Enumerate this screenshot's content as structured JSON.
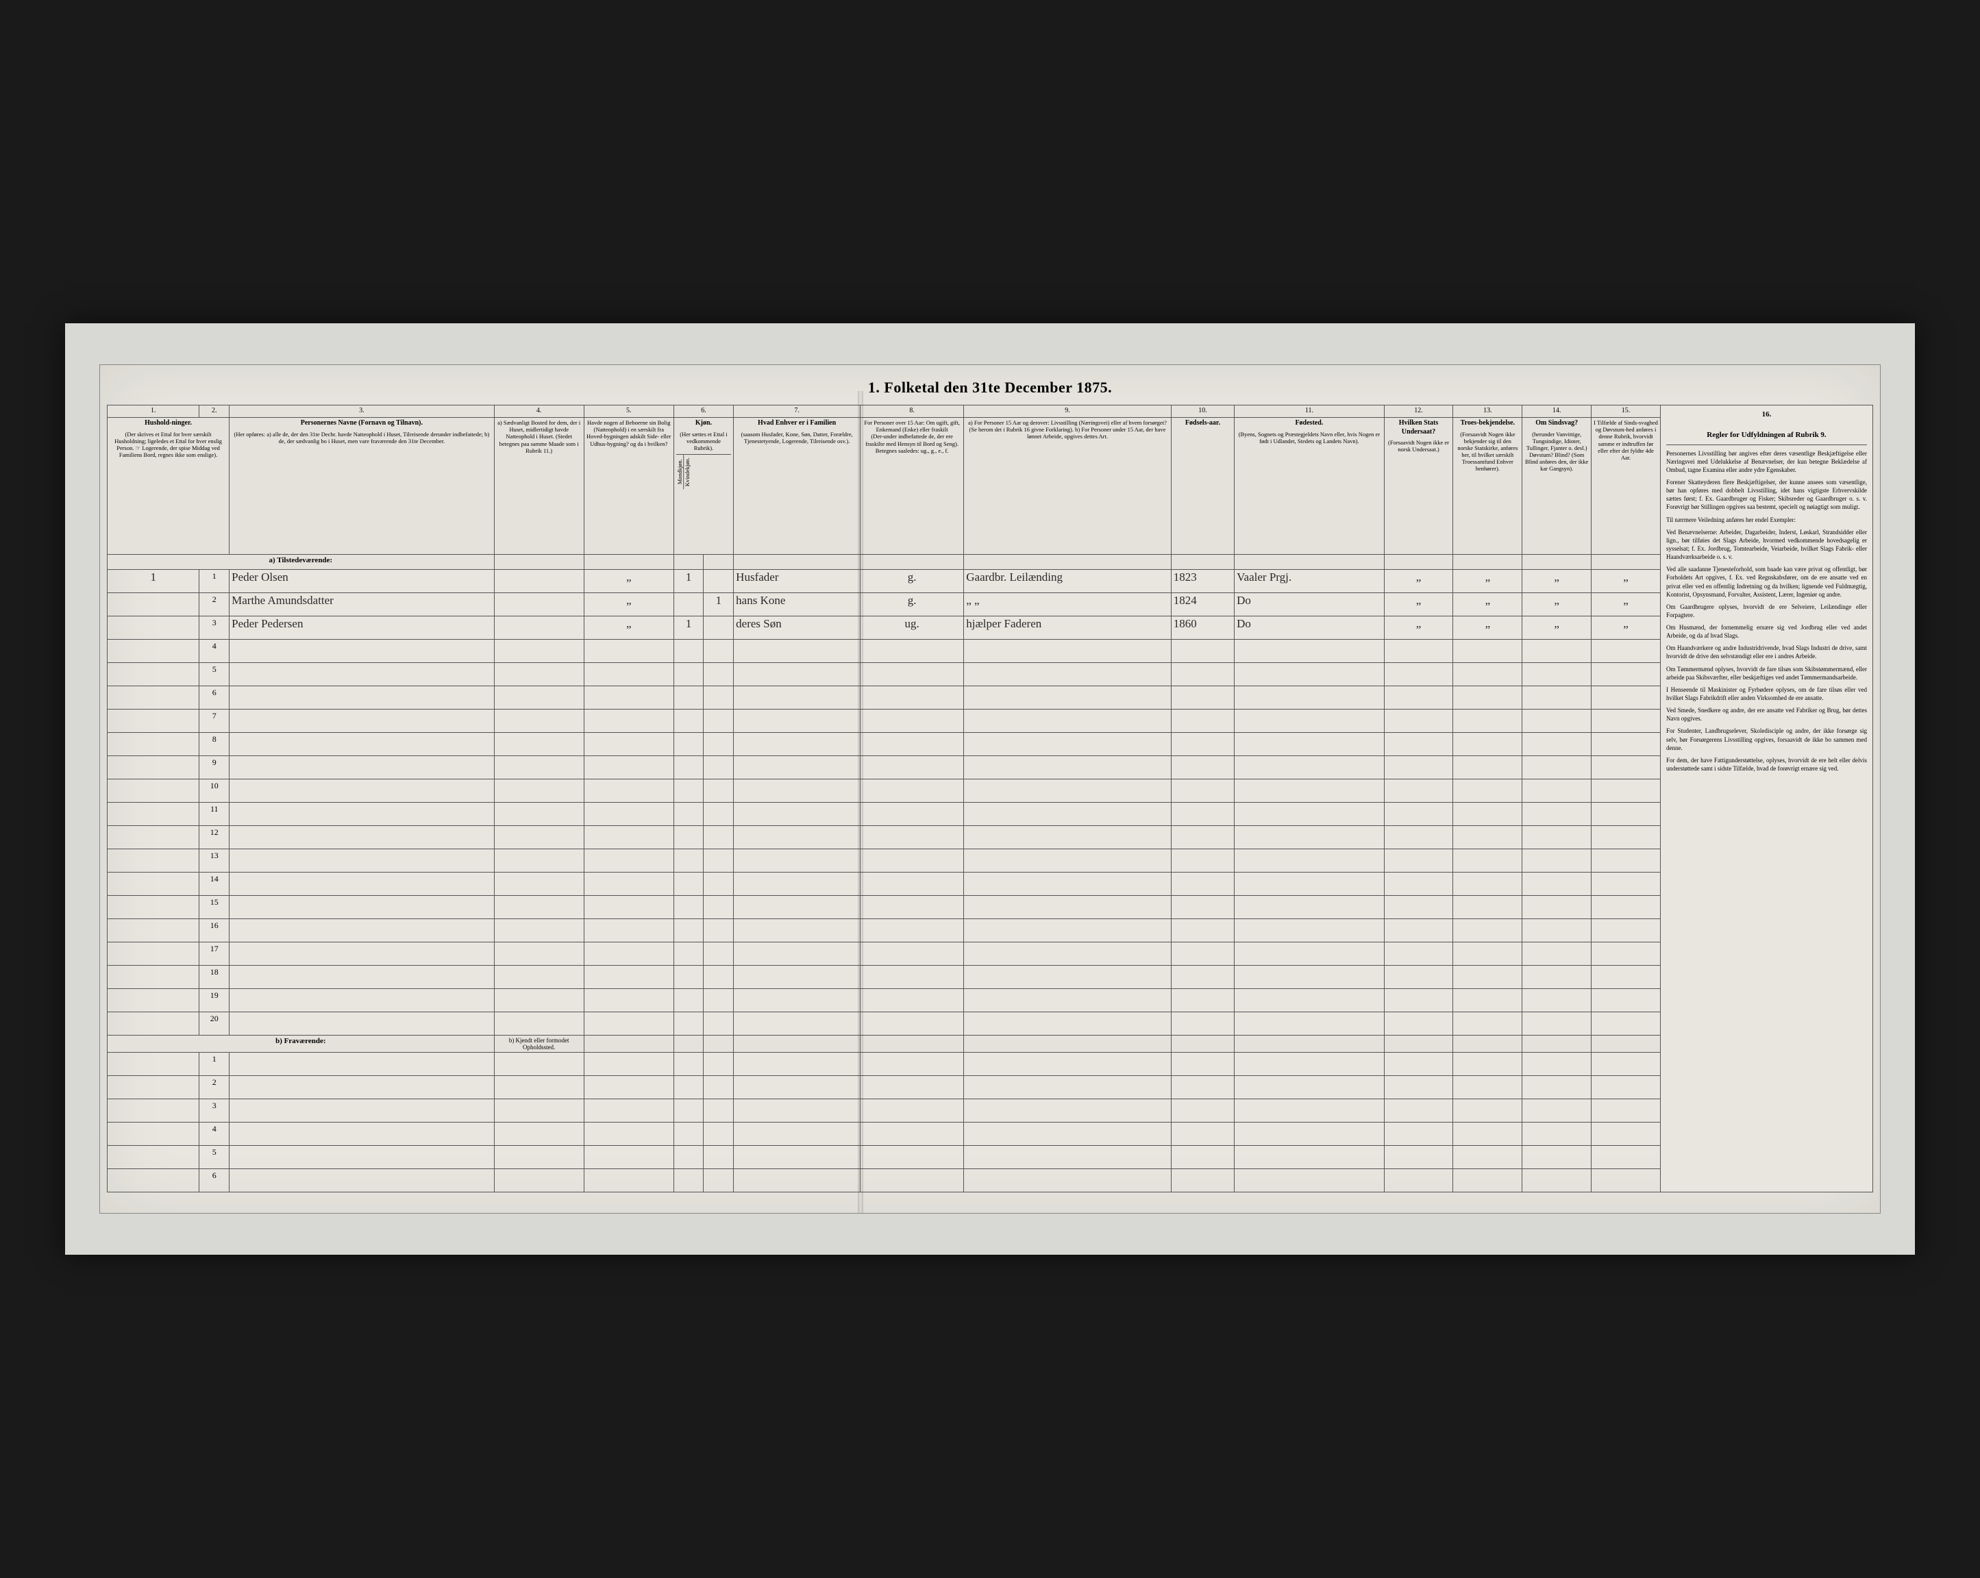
{
  "document": {
    "title": "1. Folketal den 31te December 1875.",
    "background": "#e8e6df",
    "border_color": "#555555",
    "frame_color": "#d8d8d4",
    "outer_bg": "#1a1a1a"
  },
  "columns": {
    "nums": [
      "1.",
      "2.",
      "3.",
      "4.",
      "5.",
      "6.",
      "7.",
      "8.",
      "9.",
      "10.",
      "11.",
      "12.",
      "13.",
      "14.",
      "15.",
      "16."
    ],
    "c1": {
      "title": "Hushold-ninger.",
      "note": "(Der skrives et Ettal for hver særskilt Husholdning; ligeledes et Ettal for hver enslig Person. ☞ Logerende, der spise Middag ved Familiens Bord, regnes ikke som enslige)."
    },
    "c3": {
      "title": "Personernes Navne (Fornavn og Tilnavn).",
      "note": "(Her opføres: a) alle de, der den 31te Decbr. havde Natteophold i Huset, Tilreisende derunder indbefattede; b) de, der sædvanlig bo i Huset, men vare fraværende den 31te December."
    },
    "c4": {
      "title": "a) Sædvanligt Bosted for dem, der i Huset, midlertidigt havde Natteophold i Huset. (Stedet betegnes paa samme Maade som i Rubrik 11.)"
    },
    "c5": {
      "title": "Havde nogen af Beboerne sin Bolig (Natteophold) i en særskilt fra Hoved-bygningen adskilt Side- eller Udhus-bygning? og da i hvilken?"
    },
    "c6": {
      "title": "Kjøn.",
      "note": "(Her sættes et Ettal i vedkommende Rubrik).",
      "sub1": "Mandkjøn.",
      "sub2": "Kvindekjøn."
    },
    "c7": {
      "title": "Hvad Enhver er i Familien",
      "note": "(saasom Husfader, Kone, Søn, Datter, Forældre, Tjenestetyende, Logerende, Tilreisende osv.)."
    },
    "c8": {
      "title": "For Personer over 15 Aar: Om ugift, gift, Enkemand (Enke) eller fraskilt",
      "note": "(Der-under indbefattede de, der ere fraskilte med Hensyn til Bord og Seng). Betegnes saaledes: ug., g., e., f."
    },
    "c9": {
      "title": "a) For Personer 15 Aar og derover: Livsstilling (Næringsvei) eller af hvem forsørget? (Se herom det i Rubrik 16 givne Forklaring). b) For Personer under 15 Aar, der have lønnet Arbeide, opgives dettes Art."
    },
    "c10": {
      "title": "Fødsels-aar."
    },
    "c11": {
      "title": "Fødested.",
      "note": "(Byens, Sognets og Præstegjeldets Navn eller, hvis Nogen er født i Udlandet, Stedets og Landets Navn)."
    },
    "c12": {
      "title": "Hvilken Stats Undersaat?",
      "note": "(Forsaavidt Nogen ikke er norsk Undersaat.)"
    },
    "c13": {
      "title": "Troes-bekjendelse.",
      "note": "(Forsaavidt Nogen ikke bekjender sig til den norske Statskirke, anføres her, til hvilket særskilt Troessamfund Enhver henhører)."
    },
    "c14": {
      "title": "Om Sindsvag?",
      "note": "(herunder Vanvittige, Tungsindige, Idioter, Tullinger, Fjanter o. desl.) Døvstum? Blind? (Som Blind anføres den, der ikke kar Gangsyn)."
    },
    "c15": {
      "title": "I Tilfælde af Sinds-svaghed og Døvstum-hed anføres i denne Rubrik, hvorvidt samme er indtruffen før eller efter det fyldte 4de Aar."
    },
    "c16": {
      "title": "Regler for Udfyldningen af Rubrik 9."
    }
  },
  "sections": {
    "present": "a) Tilstedeværende:",
    "absent": "b) Fraværende:",
    "absent_col4": "b) Kjendt eller formodet Opholdssted."
  },
  "rows": {
    "present": [
      {
        "n": "1",
        "hh": "1",
        "name": "Peder Olsen",
        "c4": "",
        "c5": "„",
        "m": "1",
        "f": "",
        "rel": "Husfader",
        "ms": "g.",
        "occ": "Gaardbr. Leilænding",
        "year": "1823",
        "place": "Vaaler Prgj.",
        "c12": "„",
        "c13": "„",
        "c14": "„",
        "c15": "„"
      },
      {
        "n": "2",
        "hh": "",
        "name": "Marthe Amundsdatter",
        "c4": "",
        "c5": "„",
        "m": "",
        "f": "1",
        "rel": "hans Kone",
        "ms": "g.",
        "occ": "„          „",
        "year": "1824",
        "place": "Do",
        "c12": "„",
        "c13": "„",
        "c14": "„",
        "c15": "„"
      },
      {
        "n": "3",
        "hh": "",
        "name": "Peder Pedersen",
        "c4": "",
        "c5": "„",
        "m": "1",
        "f": "",
        "rel": "deres Søn",
        "ms": "ug.",
        "occ": "hjælper Faderen",
        "year": "1860",
        "place": "Do",
        "c12": "„",
        "c13": "„",
        "c14": "„",
        "c15": "„"
      }
    ],
    "present_blank_count": 17,
    "absent_blank_count": 6
  },
  "instructions": {
    "header_col": "16.",
    "paras": [
      "Personernes Livsstilling bør angives efter deres væsentlige Beskjæftigelse eller Næringsvei med Udelukkelse af Benævnelser, der kun betegne Beklædelse af Ombud, tagne Examina eller andre ydre Egenskaber.",
      "Forener Skatteyderen flere Beskjæftigelser, der kunne ansees som væsentlige, bør han opføres med dobbelt Livsstilling, idet hans vigtigste Erhvervskilde sættes først; f. Ex. Gaardbruger og Fisker; Skibsreder og Gaardbruger o. s. v. Forøvrigt bør Stillingen opgives saa bestemt, specielt og nøiagtigt som muligt.",
      "Til nærmere Veiledning anføres her endel Exempler:",
      "Ved Benævnelserne: Arbeider, Dagarbeider, Inderst, Løskarl, Strandsidder eller lign., bør tilføies det Slags Arbeide, hvormed vedkommende hovedsagelig er sysselsat; f. Ex. Jordbrug, Tomtearbeide, Veiarbeide, hvilket Slags Fabrik- eller Haandværksarbeide o. s. v.",
      "Ved alle saadanne Tjenesteforhold, som baade kan være privat og offentligt, bør Forholdets Art opgives, f. Ex. ved Regnskabsfører, om de ere ansatte ved en privat eller ved en offentlig Indretning og da hvilken; lignende ved Fuldmægtig, Kontorist, Opsynsmand, Forvalter, Assistent, Lærer, Ingeniør og andre.",
      "Om Gaardbrugere oplyses, hvorvidt de ere Selveiere, Leilændinge eller Forpagtere.",
      "Om Husmænd, der fornemmelig ernære sig ved Jordbrug eller ved andet Arbeide, og da af hvad Slags.",
      "Om Haandværkere og andre Industridrivende, hvad Slags Industri de drive, samt hvorvidt de drive den selvstændigt eller ere i andres Arbeide.",
      "Om Tømmermænd oplyses, hvorvidt de fare tilsøs som Skibstømmermænd, eller arbeide paa Skibsværfter, eller beskjæftiges ved andet Tømmermandsarbeide.",
      "I Henseende til Maskinister og Fyrbødere oplyses, om de fare tilsøs eller ved hvilket Slags Fabrikdrift eller anden Virksomhed de ere ansatte.",
      "Ved Smede, Snedkere og andre, der ere ansatte ved Fabriker og Brug, bør dettes Navn opgives.",
      "For Studenter, Landbrugselever, Skoledisciple og andre, der ikke forsørge sig selv, bør Forsørgerens Livsstilling opgives, forsaavidt de ikke bo sammen med denne.",
      "For dem, der have Fattigunderstøttelse, oplyses, hvorvidt de ere helt eller delvis understøttede samt i sidste Tilfælde, hvad de forøvrigt ernære sig ved."
    ]
  }
}
